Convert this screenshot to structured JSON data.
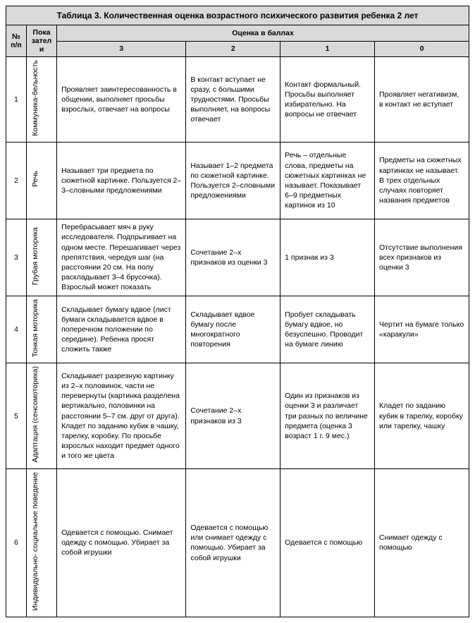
{
  "title": "Таблица 3. Количественная оценка возрастного психического развития ребенка 2 лет",
  "headers": {
    "num": "№ п/п",
    "indicators": "Показатели",
    "score_header": "Оценка в баллах",
    "s3": "3",
    "s2": "2",
    "s1": "1",
    "s0": "0"
  },
  "rows": [
    {
      "n": "1",
      "indicator": "Коммуника-бельность",
      "c3": "Проявляет заинтересованность в общении, выполняет просьбы взрослых, отвечает на вопросы",
      "c2": "В контакт вступает не сразу, с большими трудностями. Просьбы выполняет, на вопросы отвечает",
      "c1": "Контакт формальный. Просьбы выполняет избирательно. На вопросы не отвечает",
      "c0": "Проявляет негативизм, в контакт не вступает"
    },
    {
      "n": "2",
      "indicator": "Речь",
      "c3": "Называет три предмета по сюжетной картинке. Пользуется 2–3–словными предложениями",
      "c2": "Называет 1–2 предмета по сюжетной картинке. Пользуется 2–словными предложениями",
      "c1": "Речь – отдельные слова, предметы на сюжетных картинках не называет. Показывает 6–9 предметных картинок из 10",
      "c0": "Предметы на сюжетных картинках не называет. В трех отдельных случаях повторяет названия предметов"
    },
    {
      "n": "3",
      "indicator": "Грубая моторика",
      "c3": "Перебрасывает мяч в руку исследователя. Подпрыгивает на одном месте. Перешагивает через препятствия, чередуя шаг (на расстоянии 20 см. На полу раскладывает 3–4 брусочка). Взрослый может показать",
      "c2": "Сочетание 2–х признаков из оценки 3",
      "c1": "1 признак из 3",
      "c0": "Отсутствие выполнения всех признаков из оценки 3"
    },
    {
      "n": "4",
      "indicator": "Тонкая моторика",
      "c3": "Складывает бумагу вдвое (лист бумаги складывается вдвое в поперечном положении по середине). Ребенка просят сложить также",
      "c2": "Складывает вдвое бумагу после многократного повторения",
      "c1": "Пробует складывать бумагу вдвое, но безуспешно. Проводит на бумаге линию",
      "c0": "Чертит на бумаге только «каракули»"
    },
    {
      "n": "5",
      "indicator": "Адаптация (сенсомоторика)",
      "c3": "Складывает разрезную картинку из 2–х половинок, части не перевернуты (картинка разделена вертикально, половинки на расстоянии 5–7 см. друг от друга). Кладет по заданию кубик в чашку, тарелку, коробку. По просьбе взрослых находит предмет одного и того же цвета",
      "c2": "Сочетание 2–х признаков из 3",
      "c1": "Один из признаков из оценки 3 и различает три разных по величине предмета (оценка 3 возраст 1 г. 9 мес.)",
      "c0": "Кладет по заданию кубик в тарелку, коробку или тарелку, чашку"
    },
    {
      "n": "6",
      "indicator": "Индивидуально- социальное поведение",
      "c3": "Одевается с помощью. Снимает одежду с помощью. Убирает за собой игрушки",
      "c2": "Одевается с помощью или снимает одежду с помощью. Убирает за собой игрушки",
      "c1": "Одевается с помощью",
      "c0": "Снимает одежду с помощью"
    }
  ]
}
